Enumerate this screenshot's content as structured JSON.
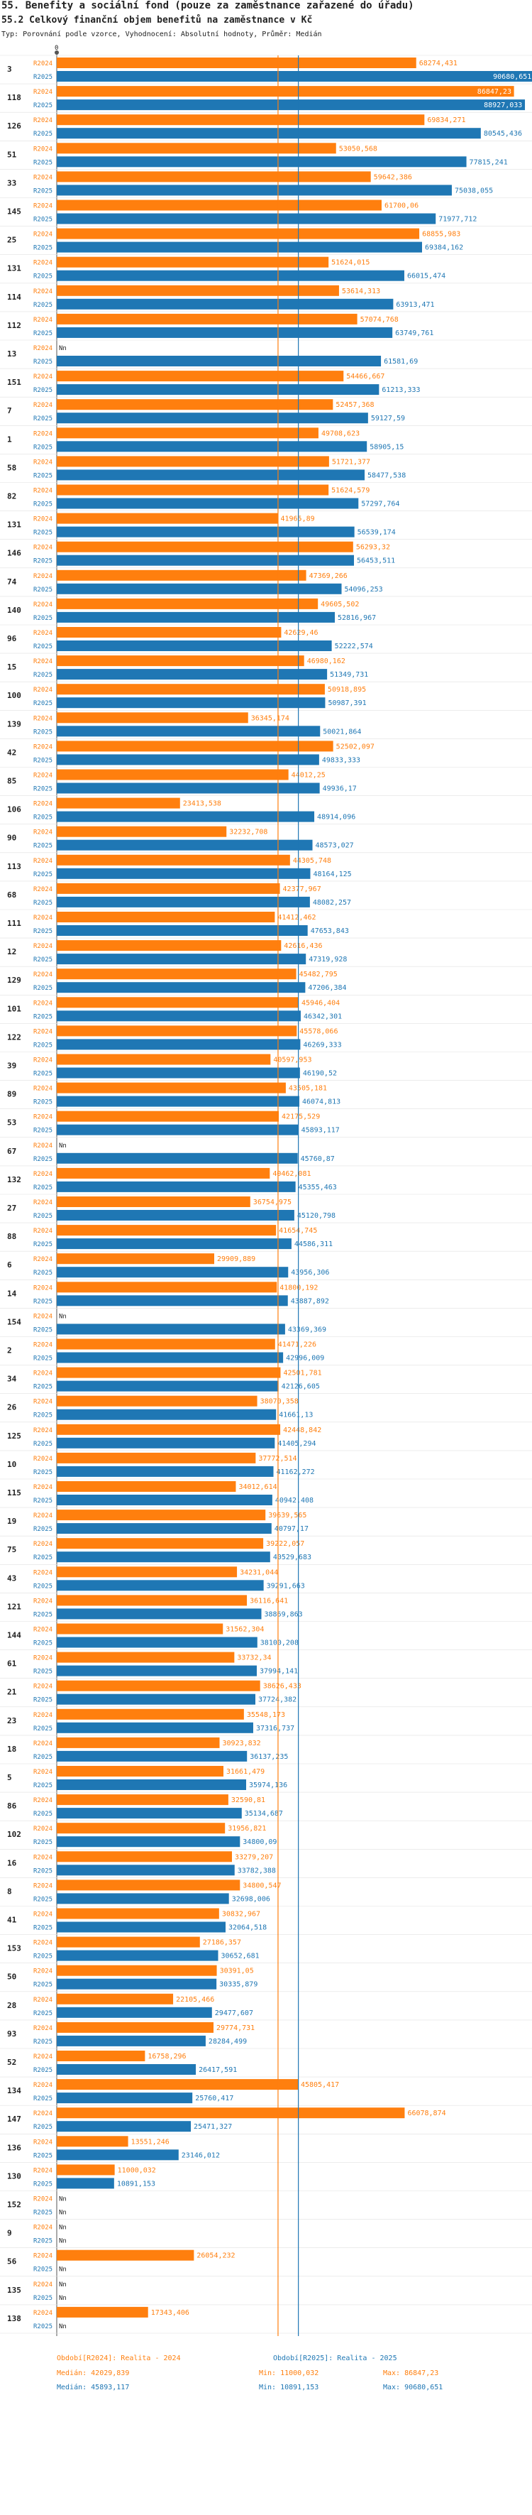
{
  "header": {
    "title": "55. Benefity a sociální fond (pouze za zaměstnance zařazené do úřadu)",
    "subtitle": "55.2 Celkový finanční objem benefitů na zaměstnance v Kč",
    "info": "Typ: Porovnání podle vzorce, Vyhodnocení: Absolutní hodnoty, Průměr: Medián"
  },
  "colors": {
    "r2024": "#ff7f0e",
    "r2025": "#1f77b4",
    "r2024_label": "#ff7f0e",
    "r2025_label": "#1f77b4",
    "grid": "#e0e0e0",
    "text": "#222222",
    "median_line": "#ff7f0e",
    "median_line_2025": "#1f77b4"
  },
  "chart_data": {
    "type": "bar",
    "orientation": "horizontal",
    "title": "55.2 Celkový finanční objem benefitů na zaměstnance v Kč",
    "xlabel": "",
    "ylabel": "",
    "xlim": [
      0,
      90000
    ],
    "axis_zero_label": "0",
    "value_precision": 3,
    "series_names": [
      "R2024",
      "R2025"
    ],
    "na_label": "Nn",
    "medians": {
      "R2024": 42029.839,
      "R2025": 45893.117
    },
    "rows": [
      {
        "id": "3",
        "R2024": 68274.431,
        "R2025": 90680.651
      },
      {
        "id": "118",
        "R2024": 86847.23,
        "R2025": 88927.033
      },
      {
        "id": "126",
        "R2024": 69834.271,
        "R2025": 80545.436
      },
      {
        "id": "51",
        "R2024": 53050.568,
        "R2025": 77815.241
      },
      {
        "id": "33",
        "R2024": 59642.386,
        "R2025": 75038.055
      },
      {
        "id": "145",
        "R2024": 61700.06,
        "R2025": 71977.712
      },
      {
        "id": "25",
        "R2024": 68855.983,
        "R2025": 69384.162
      },
      {
        "id": "131",
        "R2024": 51624.015,
        "R2025": 66015.474
      },
      {
        "id": "114",
        "R2024": 53614.313,
        "R2025": 63913.471
      },
      {
        "id": "112",
        "R2024": 57074.768,
        "R2025": 63749.761
      },
      {
        "id": "13",
        "R2024": null,
        "R2025": 61581.69
      },
      {
        "id": "151",
        "R2024": 54466.667,
        "R2025": 61213.333
      },
      {
        "id": "7",
        "R2024": 52457.368,
        "R2025": 59127.59
      },
      {
        "id": "1",
        "R2024": 49708.623,
        "R2025": 58905.15
      },
      {
        "id": "58",
        "R2024": 51721.377,
        "R2025": 58477.538
      },
      {
        "id": "82",
        "R2024": 51624.579,
        "R2025": 57297.764
      },
      {
        "id": "131",
        "R2024": 41965.89,
        "R2025": 56539.174
      },
      {
        "id": "146",
        "R2024": 56293.32,
        "R2025": 56453.511
      },
      {
        "id": "74",
        "R2024": 47369.266,
        "R2025": 54096.253
      },
      {
        "id": "140",
        "R2024": 49605.502,
        "R2025": 52816.967
      },
      {
        "id": "96",
        "R2024": 42629.46,
        "R2025": 52222.574
      },
      {
        "id": "15",
        "R2024": 46980.162,
        "R2025": 51349.731
      },
      {
        "id": "100",
        "R2024": 50918.895,
        "R2025": 50987.391
      },
      {
        "id": "139",
        "R2024": 36345.174,
        "R2025": 50021.864
      },
      {
        "id": "42",
        "R2024": 52502.097,
        "R2025": 49833.333
      },
      {
        "id": "85",
        "R2024": 44012.25,
        "R2025": 49936.17
      },
      {
        "id": "106",
        "R2024": 23413.538,
        "R2025": 48914.096
      },
      {
        "id": "90",
        "R2024": 32232.708,
        "R2025": 48573.027
      },
      {
        "id": "113",
        "R2024": 44305.748,
        "R2025": 48164.125
      },
      {
        "id": "68",
        "R2024": 42377.967,
        "R2025": 48082.257
      },
      {
        "id": "111",
        "R2024": 41412.462,
        "R2025": 47653.843
      },
      {
        "id": "12",
        "R2024": 42616.436,
        "R2025": 47319.928
      },
      {
        "id": "129",
        "R2024": 45482.795,
        "R2025": 47206.384
      },
      {
        "id": "101",
        "R2024": 45946.404,
        "R2025": 46342.301
      },
      {
        "id": "122",
        "R2024": 45578.066,
        "R2025": 46269.333
      },
      {
        "id": "39",
        "R2024": 40597.953,
        "R2025": 46190.52
      },
      {
        "id": "89",
        "R2024": 43505.181,
        "R2025": 46074.813
      },
      {
        "id": "53",
        "R2024": 42175.529,
        "R2025": 45893.117
      },
      {
        "id": "67",
        "R2024": null,
        "R2025": 45760.87
      },
      {
        "id": "132",
        "R2024": 40462.081,
        "R2025": 45355.463
      },
      {
        "id": "27",
        "R2024": 36754.975,
        "R2025": 45120.798
      },
      {
        "id": "88",
        "R2024": 41654.745,
        "R2025": 44586.311
      },
      {
        "id": "6",
        "R2024": 29909.889,
        "R2025": 43956.306
      },
      {
        "id": "14",
        "R2024": 41800.192,
        "R2025": 43887.892
      },
      {
        "id": "154",
        "R2024": null,
        "R2025": 43369.369
      },
      {
        "id": "2",
        "R2024": 41471.226,
        "R2025": 42996.009
      },
      {
        "id": "34",
        "R2024": 42501.781,
        "R2025": 42126.605
      },
      {
        "id": "26",
        "R2024": 38070.358,
        "R2025": 41661.13
      },
      {
        "id": "125",
        "R2024": 42448.842,
        "R2025": 41405.294
      },
      {
        "id": "10",
        "R2024": 37772.514,
        "R2025": 41162.272
      },
      {
        "id": "115",
        "R2024": 34012.614,
        "R2025": 40942.408
      },
      {
        "id": "19",
        "R2024": 39639.565,
        "R2025": 40797.17
      },
      {
        "id": "75",
        "R2024": 39222.057,
        "R2025": 40529.683
      },
      {
        "id": "43",
        "R2024": 34231.044,
        "R2025": 39291.663
      },
      {
        "id": "121",
        "R2024": 36116.641,
        "R2025": 38869.863
      },
      {
        "id": "144",
        "R2024": 31562.304,
        "R2025": 38100.208
      },
      {
        "id": "61",
        "R2024": 33732.34,
        "R2025": 37994.141
      },
      {
        "id": "21",
        "R2024": 38626.433,
        "R2025": 37724.382
      },
      {
        "id": "23",
        "R2024": 35548.173,
        "R2025": 37316.737
      },
      {
        "id": "18",
        "R2024": 30923.832,
        "R2025": 36137.235
      },
      {
        "id": "5",
        "R2024": 31661.479,
        "R2025": 35974.136
      },
      {
        "id": "86",
        "R2024": 32590.81,
        "R2025": 35134.687
      },
      {
        "id": "102",
        "R2024": 31956.821,
        "R2025": 34800.09
      },
      {
        "id": "16",
        "R2024": 33279.207,
        "R2025": 33782.388
      },
      {
        "id": "8",
        "R2024": 34800.547,
        "R2025": 32698.006
      },
      {
        "id": "41",
        "R2024": 30832.967,
        "R2025": 32064.518
      },
      {
        "id": "153",
        "R2024": 27186.357,
        "R2025": 30652.681
      },
      {
        "id": "50",
        "R2024": 30391.05,
        "R2025": 30335.879
      },
      {
        "id": "28",
        "R2024": 22105.466,
        "R2025": 29477.607
      },
      {
        "id": "93",
        "R2024": 29774.731,
        "R2025": 28284.499
      },
      {
        "id": "52",
        "R2024": 16758.296,
        "R2025": 26417.591
      },
      {
        "id": "134",
        "R2024": 45805.417,
        "R2025": 25760.417
      },
      {
        "id": "147",
        "R2024": 66078.874,
        "R2025": 25471.327
      },
      {
        "id": "136",
        "R2024": 13551.246,
        "R2025": 23146.012
      },
      {
        "id": "130",
        "R2024": 11000.032,
        "R2025": 10891.153
      },
      {
        "id": "152",
        "R2024": null,
        "R2025": null
      },
      {
        "id": "9",
        "R2024": null,
        "R2025": null
      },
      {
        "id": "56",
        "R2024": 26054.232,
        "R2025": null
      },
      {
        "id": "135",
        "R2024": null,
        "R2025": null
      },
      {
        "id": "138",
        "R2024": 17343.406,
        "R2025": null
      }
    ],
    "legend": [
      {
        "series": "R2024",
        "label": "Období[R2024]: Realita - 2024",
        "median": "Medián: 42029,839",
        "min": "Min: 11000,032",
        "max": "Max: 86847,23"
      },
      {
        "series": "R2025",
        "label": "Období[R2025]: Realita - 2025",
        "median": "Medián: 45893,117",
        "min": "Min: 10891,153",
        "max": "Max: 90680,651"
      }
    ]
  }
}
